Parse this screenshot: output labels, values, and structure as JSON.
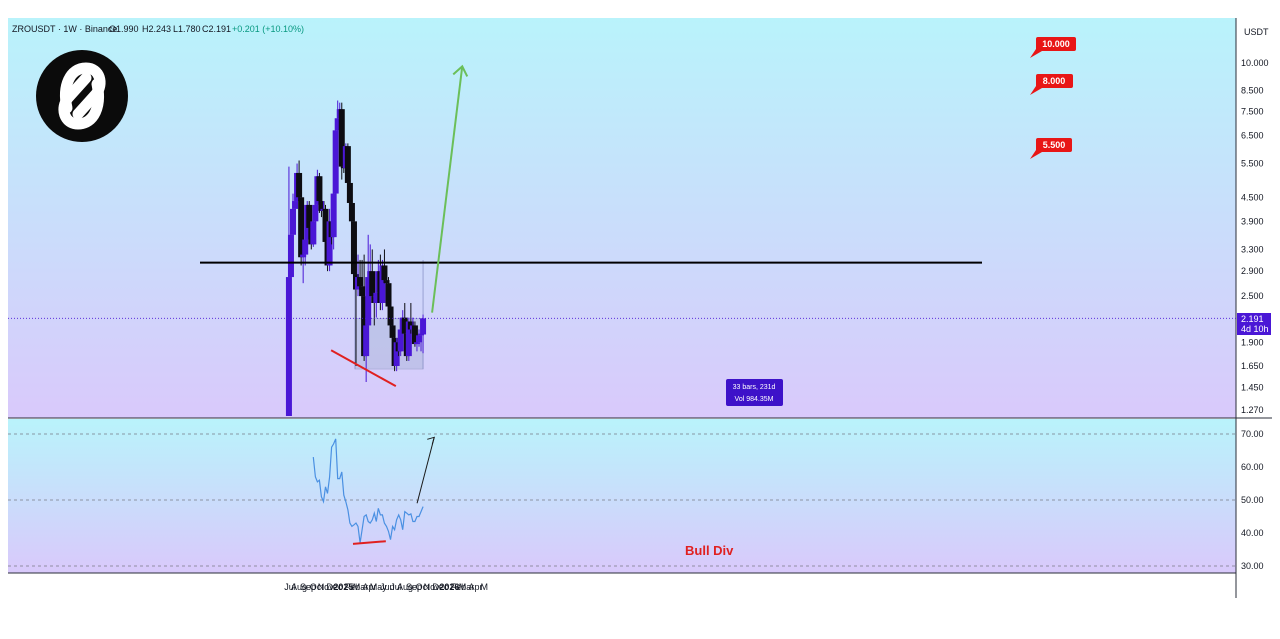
{
  "header": {
    "symbol": "ZROUSDT · 1W · Binance",
    "open": "O1.990",
    "high": "H2.243",
    "low": "L1.780",
    "close": "C2.191",
    "change": "+0.201 (+10.10%)"
  },
  "currency_label": "USDT",
  "price_badge": {
    "price": "2.191",
    "countdown": "4d 10h"
  },
  "targets": [
    "10.000",
    "8.000",
    "5.500"
  ],
  "range_box": {
    "bars": "33 bars, 231d",
    "volume": "Vol 984.35M"
  },
  "bull_div_label": "Bull Div",
  "colors": {
    "background_top": "#b9f3fb",
    "background_bottom": "#d9c9fb",
    "up_candle": "#4a17d6",
    "down_candle": "#0d0d12",
    "rsi_line": "#4a90e2",
    "divergence": "#e02020",
    "projection_arrow": "#6bbf59",
    "target_badge": "#e81616",
    "resistance": "#000000"
  },
  "chart_data": [
    {
      "type": "candlestick",
      "title": "",
      "scale": "log",
      "ylim": [
        1.2,
        12
      ],
      "y_ticks": [
        "10.000",
        "8.500",
        "7.500",
        "6.500",
        "5.500",
        "4.500",
        "3.900",
        "3.300",
        "2.900",
        "2.500",
        "2.191",
        "1.900",
        "1.650",
        "1.450",
        "1.270"
      ],
      "x_ticks": [
        "Jul",
        "Aug",
        "Sep",
        "Oct",
        "Nov",
        "Dec",
        "2025",
        "Feb",
        "Mar",
        "Apr",
        "May",
        "Jun",
        "Jul",
        "Aug",
        "Sep",
        "Oct",
        "Nov",
        "Dec",
        "2026",
        "Feb",
        "Mar",
        "Apr",
        "M"
      ],
      "candles": [
        {
          "date": "2024-06-17",
          "o": 1.2,
          "h": 5.4,
          "l": 1.2,
          "c": 2.8
        },
        {
          "date": "2024-06-24",
          "o": 2.8,
          "h": 3.9,
          "l": 2.45,
          "c": 3.6
        },
        {
          "date": "2024-07-01",
          "o": 3.6,
          "h": 4.6,
          "l": 3.4,
          "c": 4.2
        },
        {
          "date": "2024-07-08",
          "o": 4.2,
          "h": 4.8,
          "l": 3.9,
          "c": 4.4
        },
        {
          "date": "2024-07-15",
          "o": 4.4,
          "h": 5.5,
          "l": 4.2,
          "c": 5.2
        },
        {
          "date": "2024-07-22",
          "o": 5.2,
          "h": 5.6,
          "l": 4.3,
          "c": 4.5
        },
        {
          "date": "2024-07-29",
          "o": 4.5,
          "h": 4.7,
          "l": 3.0,
          "c": 3.15
        },
        {
          "date": "2024-08-05",
          "o": 3.15,
          "h": 3.3,
          "l": 2.7,
          "c": 3.2
        },
        {
          "date": "2024-08-12",
          "o": 3.2,
          "h": 3.7,
          "l": 3.0,
          "c": 3.5
        },
        {
          "date": "2024-08-19",
          "o": 3.5,
          "h": 4.4,
          "l": 3.3,
          "c": 4.3
        },
        {
          "date": "2024-08-26",
          "o": 4.3,
          "h": 4.4,
          "l": 3.6,
          "c": 3.75
        },
        {
          "date": "2024-09-02",
          "o": 3.75,
          "h": 3.85,
          "l": 3.3,
          "c": 3.4
        },
        {
          "date": "2024-09-09",
          "o": 3.4,
          "h": 4.0,
          "l": 3.35,
          "c": 3.9
        },
        {
          "date": "2024-09-16",
          "o": 3.9,
          "h": 4.4,
          "l": 3.7,
          "c": 4.3
        },
        {
          "date": "2024-09-23",
          "o": 4.3,
          "h": 5.3,
          "l": 4.1,
          "c": 5.1
        },
        {
          "date": "2024-09-30",
          "o": 5.1,
          "h": 5.2,
          "l": 4.1,
          "c": 4.4
        },
        {
          "date": "2024-10-07",
          "o": 4.4,
          "h": 4.9,
          "l": 4.0,
          "c": 4.15
        },
        {
          "date": "2024-10-14",
          "o": 4.15,
          "h": 4.4,
          "l": 3.9,
          "c": 4.2
        },
        {
          "date": "2024-10-21",
          "o": 4.2,
          "h": 4.3,
          "l": 3.3,
          "c": 3.45
        },
        {
          "date": "2024-10-28",
          "o": 3.45,
          "h": 3.7,
          "l": 2.9,
          "c": 3.0
        },
        {
          "date": "2024-11-04",
          "o": 3.0,
          "h": 4.2,
          "l": 2.9,
          "c": 3.9
        },
        {
          "date": "2024-11-11",
          "o": 3.9,
          "h": 4.4,
          "l": 3.4,
          "c": 3.55
        },
        {
          "date": "2024-11-18",
          "o": 3.55,
          "h": 4.7,
          "l": 3.3,
          "c": 4.6
        },
        {
          "date": "2024-11-25",
          "o": 4.6,
          "h": 6.9,
          "l": 4.5,
          "c": 6.7
        },
        {
          "date": "2024-12-02",
          "o": 6.7,
          "h": 8.0,
          "l": 6.4,
          "c": 7.2
        },
        {
          "date": "2024-12-09",
          "o": 7.2,
          "h": 7.9,
          "l": 6.9,
          "c": 7.6
        },
        {
          "date": "2024-12-16",
          "o": 7.6,
          "h": 7.9,
          "l": 5.0,
          "c": 5.4
        },
        {
          "date": "2024-12-23",
          "o": 5.4,
          "h": 5.9,
          "l": 5.2,
          "c": 5.35
        },
        {
          "date": "2024-12-30",
          "o": 5.35,
          "h": 6.2,
          "l": 4.9,
          "c": 6.1
        },
        {
          "date": "2025-01-06",
          "o": 6.1,
          "h": 6.2,
          "l": 4.8,
          "c": 4.9
        },
        {
          "date": "2025-01-13",
          "o": 4.9,
          "h": 5.3,
          "l": 4.2,
          "c": 4.35
        },
        {
          "date": "2025-01-20",
          "o": 4.35,
          "h": 4.6,
          "l": 3.8,
          "c": 3.9
        },
        {
          "date": "2025-01-27",
          "o": 3.9,
          "h": 4.0,
          "l": 2.75,
          "c": 2.85
        },
        {
          "date": "2025-02-03",
          "o": 2.85,
          "h": 3.2,
          "l": 1.65,
          "c": 2.6
        },
        {
          "date": "2025-02-10",
          "o": 2.6,
          "h": 3.2,
          "l": 2.5,
          "c": 2.8
        },
        {
          "date": "2025-02-17",
          "o": 2.8,
          "h": 3.1,
          "l": 2.6,
          "c": 2.65
        },
        {
          "date": "2025-02-24",
          "o": 2.65,
          "h": 3.1,
          "l": 2.3,
          "c": 2.5
        },
        {
          "date": "2025-03-03",
          "o": 2.5,
          "h": 3.2,
          "l": 1.7,
          "c": 1.75
        },
        {
          "date": "2025-03-10",
          "o": 1.75,
          "h": 2.2,
          "l": 1.5,
          "c": 2.1
        },
        {
          "date": "2025-03-17",
          "o": 2.1,
          "h": 3.6,
          "l": 2.0,
          "c": 2.8
        },
        {
          "date": "2025-03-24",
          "o": 2.8,
          "h": 3.4,
          "l": 2.6,
          "c": 2.9
        },
        {
          "date": "2025-03-31",
          "o": 2.9,
          "h": 3.3,
          "l": 2.4,
          "c": 2.5
        },
        {
          "date": "2025-04-07",
          "o": 2.5,
          "h": 2.8,
          "l": 2.1,
          "c": 2.4
        },
        {
          "date": "2025-04-14",
          "o": 2.4,
          "h": 2.6,
          "l": 2.2,
          "c": 2.55
        },
        {
          "date": "2025-04-21",
          "o": 2.55,
          "h": 3.1,
          "l": 2.4,
          "c": 2.9
        },
        {
          "date": "2025-04-28",
          "o": 2.9,
          "h": 3.2,
          "l": 2.3,
          "c": 2.4
        },
        {
          "date": "2025-05-05",
          "o": 2.4,
          "h": 3.1,
          "l": 2.3,
          "c": 3.0
        },
        {
          "date": "2025-05-12",
          "o": 3.0,
          "h": 3.3,
          "l": 2.7,
          "c": 2.75
        },
        {
          "date": "2025-05-19",
          "o": 2.75,
          "h": 2.9,
          "l": 2.5,
          "c": 2.7
        },
        {
          "date": "2025-05-26",
          "o": 2.7,
          "h": 2.8,
          "l": 2.3,
          "c": 2.35
        },
        {
          "date": "2025-06-02",
          "o": 2.35,
          "h": 2.5,
          "l": 2.0,
          "c": 2.1
        },
        {
          "date": "2025-06-09",
          "o": 2.1,
          "h": 2.2,
          "l": 1.9,
          "c": 1.95
        },
        {
          "date": "2025-06-16",
          "o": 1.95,
          "h": 2.0,
          "l": 1.6,
          "c": 1.65
        },
        {
          "date": "2025-06-23",
          "o": 1.65,
          "h": 1.95,
          "l": 1.6,
          "c": 1.9
        },
        {
          "date": "2025-06-30",
          "o": 1.9,
          "h": 2.0,
          "l": 1.75,
          "c": 1.8
        },
        {
          "date": "2025-07-07",
          "o": 1.8,
          "h": 2.1,
          "l": 1.75,
          "c": 2.05
        },
        {
          "date": "2025-07-14",
          "o": 2.05,
          "h": 2.3,
          "l": 1.95,
          "c": 2.2
        },
        {
          "date": "2025-07-21",
          "o": 2.2,
          "h": 2.4,
          "l": 1.95,
          "c": 2.0
        },
        {
          "date": "2025-07-28",
          "o": 2.0,
          "h": 2.1,
          "l": 1.7,
          "c": 1.75
        },
        {
          "date": "2025-08-04",
          "o": 1.75,
          "h": 2.2,
          "l": 1.7,
          "c": 2.15
        },
        {
          "date": "2025-08-11",
          "o": 2.15,
          "h": 2.4,
          "l": 2.0,
          "c": 2.05
        },
        {
          "date": "2025-08-18",
          "o": 2.05,
          "h": 2.2,
          "l": 1.95,
          "c": 2.1
        },
        {
          "date": "2025-08-25",
          "o": 2.1,
          "h": 2.15,
          "l": 1.85,
          "c": 1.88
        },
        {
          "date": "2025-09-01",
          "o": 1.88,
          "h": 1.95,
          "l": 1.8,
          "c": 1.9
        },
        {
          "date": "2025-09-08",
          "o": 1.9,
          "h": 2.05,
          "l": 1.85,
          "c": 1.98
        },
        {
          "date": "2025-09-15",
          "o": 1.98,
          "h": 2.1,
          "l": 1.8,
          "c": 2.0
        },
        {
          "date": "2025-09-22",
          "o": 1.99,
          "h": 2.24,
          "l": 1.78,
          "c": 2.19
        }
      ],
      "resistance_level": 3.05,
      "range_box": {
        "start": "2025-02-03",
        "end": "2025-09-22",
        "high": 2.19,
        "low": 1.62
      },
      "support_divergence": {
        "start": {
          "date": "2025-03-03",
          "y": 1.78
        },
        "end": {
          "date": "2025-08-04",
          "y": 1.6
        }
      },
      "projection": {
        "start": {
          "date": "2025-09-29",
          "y": 2.2
        },
        "end": {
          "date": "2025-11-03",
          "y": 9.8
        }
      },
      "target_levels": [
        10.0,
        8.0,
        5.5
      ]
    },
    {
      "type": "line",
      "title": "",
      "ylim": [
        28,
        72
      ],
      "y_ticks": [
        "70.00",
        "60.00",
        "50.00",
        "40.00",
        "30.00"
      ],
      "reference_lines": [
        70,
        50,
        30
      ],
      "series": [
        {
          "values": [
            {
              "date": "2024-09-09",
              "y": 63
            },
            {
              "date": "2024-09-16",
              "y": 57
            },
            {
              "date": "2024-09-23",
              "y": 55.5
            },
            {
              "date": "2024-09-30",
              "y": 56
            },
            {
              "date": "2024-10-07",
              "y": 51
            },
            {
              "date": "2024-10-14",
              "y": 49.5
            },
            {
              "date": "2024-10-21",
              "y": 54
            },
            {
              "date": "2024-10-28",
              "y": 52
            },
            {
              "date": "2024-11-04",
              "y": 57
            },
            {
              "date": "2024-11-11",
              "y": 66
            },
            {
              "date": "2024-11-18",
              "y": 67
            },
            {
              "date": "2024-11-25",
              "y": 68.5
            },
            {
              "date": "2024-12-02",
              "y": 56.5
            },
            {
              "date": "2024-12-09",
              "y": 56.5
            },
            {
              "date": "2024-12-16",
              "y": 58.5
            },
            {
              "date": "2024-12-23",
              "y": 51.5
            },
            {
              "date": "2024-12-30",
              "y": 49.5
            },
            {
              "date": "2025-01-06",
              "y": 47
            },
            {
              "date": "2025-01-13",
              "y": 43
            },
            {
              "date": "2025-01-20",
              "y": 42
            },
            {
              "date": "2025-01-27",
              "y": 42.5
            },
            {
              "date": "2025-02-03",
              "y": 43
            },
            {
              "date": "2025-02-10",
              "y": 42
            },
            {
              "date": "2025-02-17",
              "y": 37
            },
            {
              "date": "2025-02-24",
              "y": 41
            },
            {
              "date": "2025-03-03",
              "y": 45
            },
            {
              "date": "2025-03-10",
              "y": 45.5
            },
            {
              "date": "2025-03-17",
              "y": 43.5
            },
            {
              "date": "2025-03-24",
              "y": 43
            },
            {
              "date": "2025-03-31",
              "y": 44
            },
            {
              "date": "2025-04-07",
              "y": 46
            },
            {
              "date": "2025-04-14",
              "y": 43.5
            },
            {
              "date": "2025-04-21",
              "y": 47.5
            },
            {
              "date": "2025-04-28",
              "y": 45.5
            },
            {
              "date": "2025-05-05",
              "y": 45.5
            },
            {
              "date": "2025-05-12",
              "y": 43
            },
            {
              "date": "2025-05-19",
              "y": 42
            },
            {
              "date": "2025-05-26",
              "y": 40.5
            },
            {
              "date": "2025-06-02",
              "y": 38
            },
            {
              "date": "2025-06-09",
              "y": 42
            },
            {
              "date": "2025-06-16",
              "y": 41
            },
            {
              "date": "2025-06-23",
              "y": 44
            },
            {
              "date": "2025-06-30",
              "y": 45.5
            },
            {
              "date": "2025-07-07",
              "y": 44
            },
            {
              "date": "2025-07-14",
              "y": 41
            },
            {
              "date": "2025-07-21",
              "y": 46.5
            },
            {
              "date": "2025-07-28",
              "y": 46
            },
            {
              "date": "2025-08-04",
              "y": 45.5
            },
            {
              "date": "2025-08-11",
              "y": 45.8
            },
            {
              "date": "2025-08-18",
              "y": 43.5
            },
            {
              "date": "2025-08-25",
              "y": 43.5
            },
            {
              "date": "2025-09-01",
              "y": 45
            },
            {
              "date": "2025-09-08",
              "y": 45
            },
            {
              "date": "2025-09-22",
              "y": 48
            }
          ]
        }
      ],
      "divergence_line": {
        "start": {
          "date": "2025-02-03",
          "y": 37
        },
        "end": {
          "date": "2025-08-04",
          "y": 37.5
        }
      },
      "projection": {
        "start": {
          "date": "2025-09-29",
          "y": 49
        },
        "end": {
          "date": "2025-11-03",
          "y": 69
        }
      }
    }
  ]
}
